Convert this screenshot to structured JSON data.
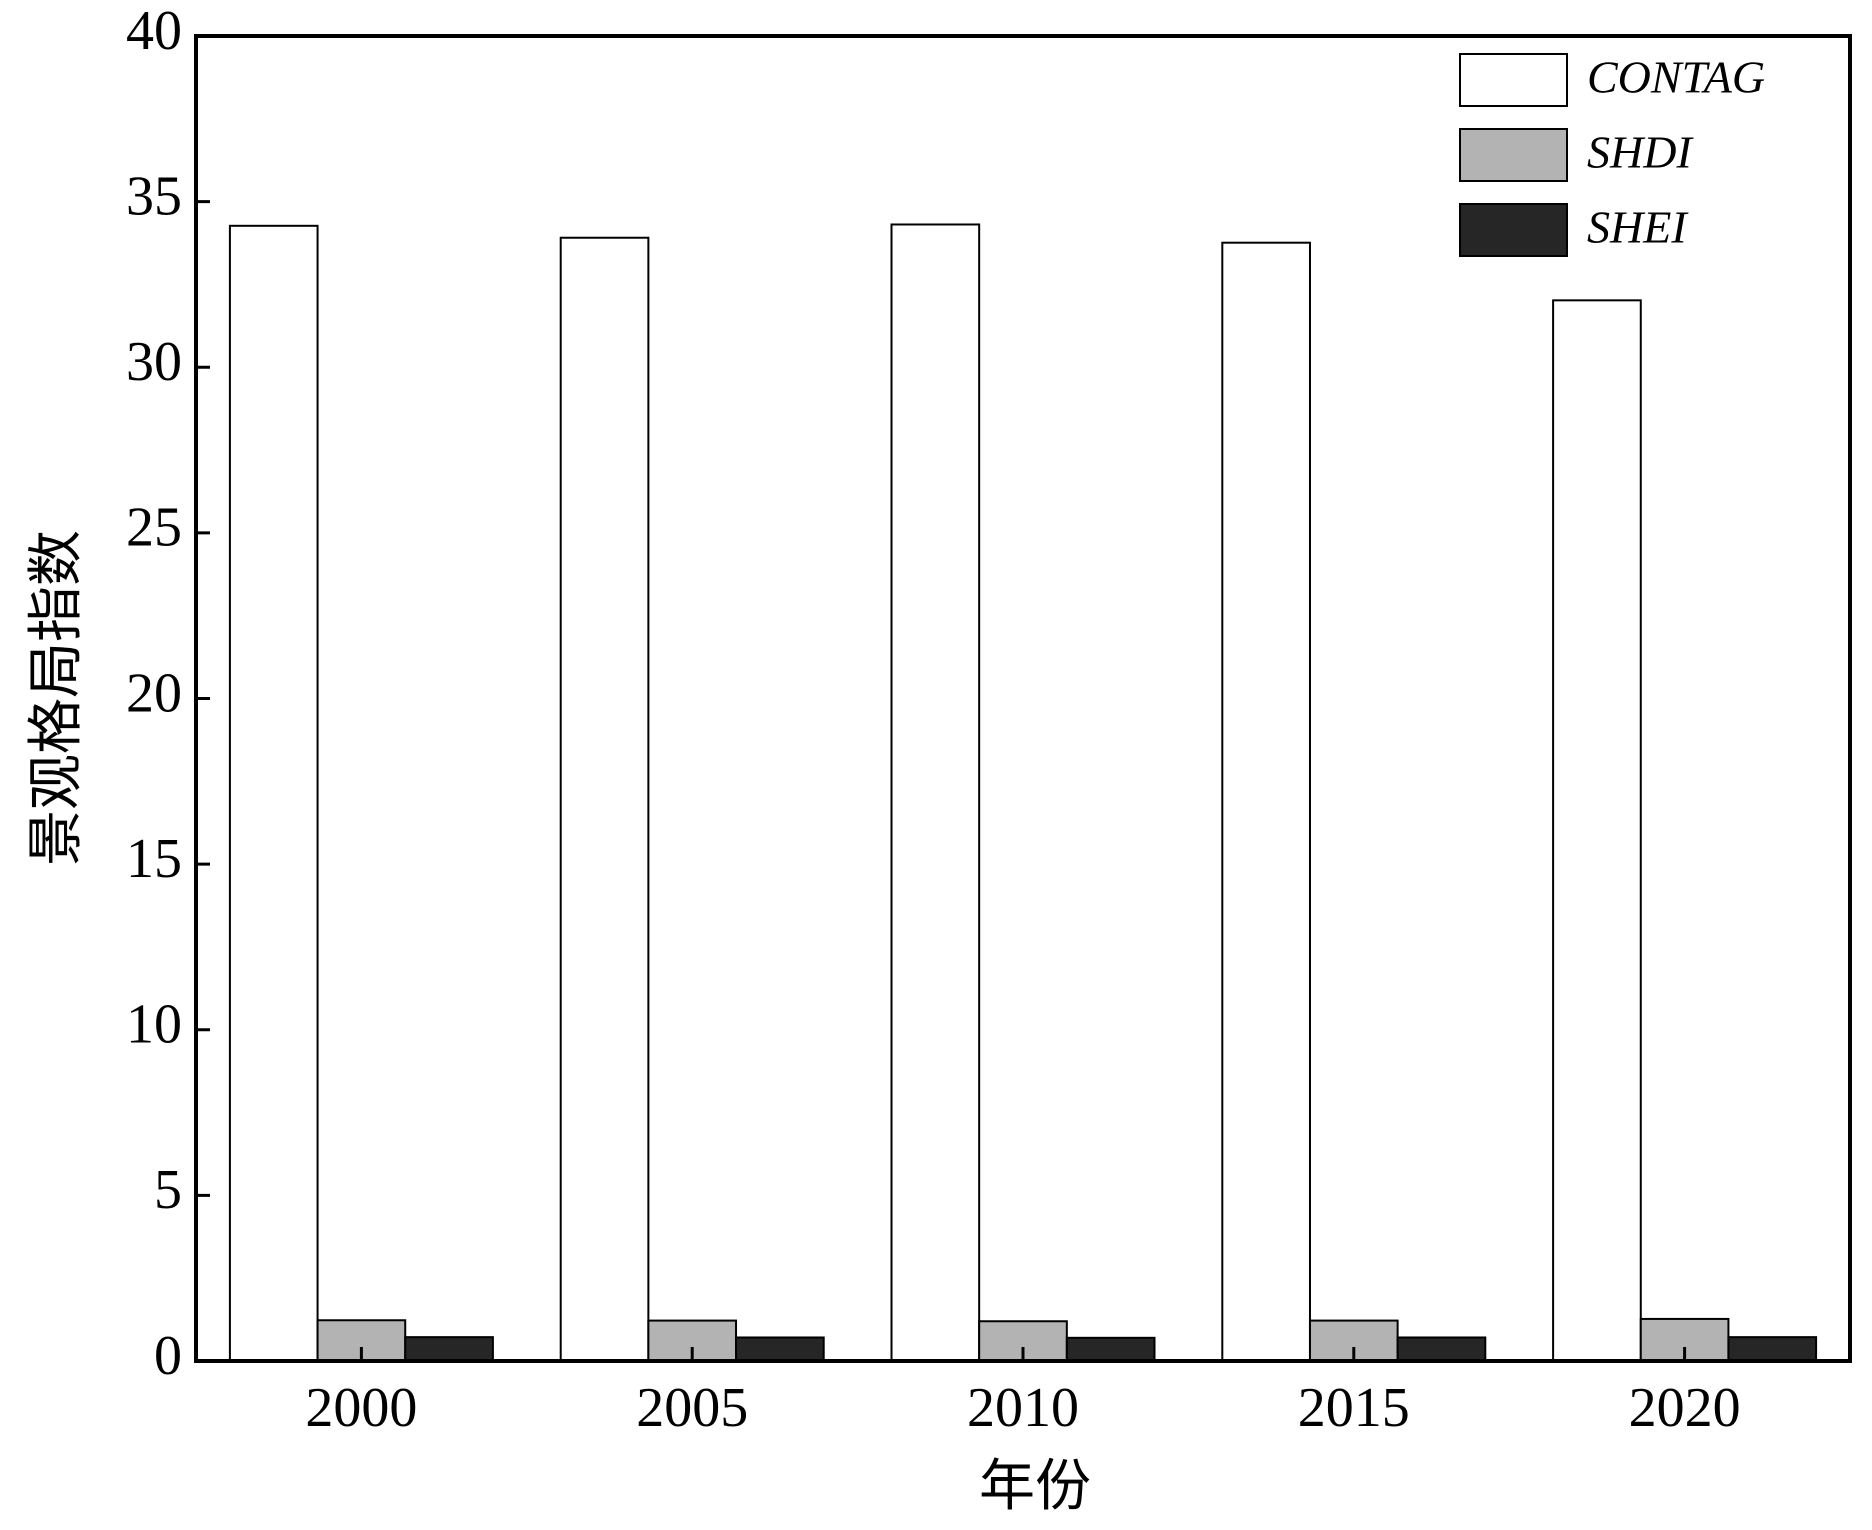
{
  "chart_data": {
    "type": "bar",
    "x_label": "年份",
    "y_label": "景观格局指数",
    "categories": [
      "2000",
      "2005",
      "2010",
      "2015",
      "2020"
    ],
    "series": [
      {
        "name": "CONTAG",
        "color": "#ffffff",
        "values": [
          34.27,
          33.91,
          34.31,
          33.76,
          32.02
        ]
      },
      {
        "name": "SHDI",
        "color": "#b3b3b3",
        "values": [
          1.23,
          1.22,
          1.2,
          1.22,
          1.27
        ]
      },
      {
        "name": "SHEI",
        "color": "#262626",
        "values": [
          0.72,
          0.71,
          0.7,
          0.71,
          0.72
        ]
      }
    ],
    "ylim": [
      0,
      40
    ],
    "yticks": [
      0,
      5,
      10,
      15,
      20,
      25,
      30,
      35,
      40
    ],
    "grid": false,
    "legend": "upper right"
  }
}
